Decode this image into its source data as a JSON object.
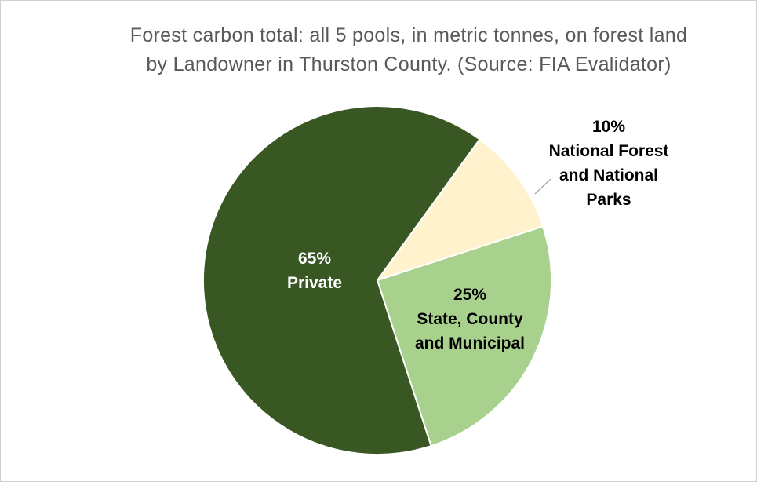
{
  "chart_data": {
    "type": "pie",
    "title_lines": [
      "Forest carbon total: all 5 pools, in metric tonnes, on forest land",
      "by Landowner in Thurston County.  (Source: FIA Evalidator)"
    ],
    "slices": [
      {
        "name_lines": [
          "National Forest",
          "and National",
          "Parks"
        ],
        "value": 10,
        "percent_label": "10%",
        "color": "#fff2cc",
        "label_color": "#000000"
      },
      {
        "name_lines": [
          "State, County",
          "and Municipal"
        ],
        "value": 25,
        "percent_label": "25%",
        "color": "#a9d18e",
        "label_color": "#000000"
      },
      {
        "name_lines": [
          "Private"
        ],
        "value": 65,
        "percent_label": "65%",
        "color": "#385723",
        "label_color": "#ffffff"
      }
    ],
    "start_angle_deg": 36,
    "direction": "clockwise",
    "legend": "none",
    "leader_line_color": "#a6a6a6"
  }
}
